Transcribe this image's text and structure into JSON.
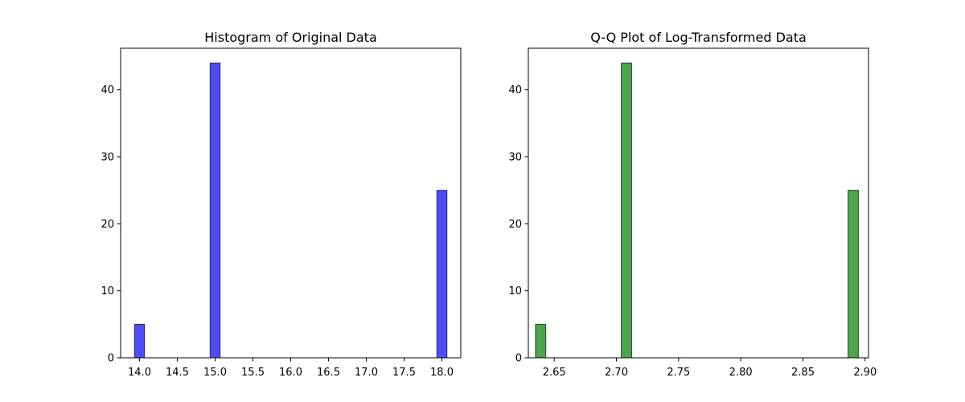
{
  "chart_data": [
    {
      "type": "bar",
      "title": "Histogram of Original Data",
      "xlabel": "",
      "ylabel": "",
      "xlim": [
        13.75,
        18.25
      ],
      "ylim": [
        0,
        46.2
      ],
      "x_ticks": [
        "14.0",
        "14.5",
        "15.0",
        "15.5",
        "16.0",
        "16.5",
        "17.0",
        "17.5",
        "18.0"
      ],
      "y_ticks": [
        "0",
        "10",
        "20",
        "30",
        "40"
      ],
      "bin_width": 0.133,
      "bars": [
        {
          "x": 14.0,
          "count": 5
        },
        {
          "x": 15.0,
          "count": 44
        },
        {
          "x": 18.0,
          "count": 25
        }
      ],
      "bar_color": "#0000ff",
      "grid": false
    },
    {
      "type": "bar",
      "title": "Q-Q Plot of Log-Transformed Data",
      "xlabel": "",
      "ylabel": "",
      "xlim": [
        2.6292,
        2.9027
      ],
      "ylim": [
        0,
        46.2
      ],
      "x_ticks": [
        "2.65",
        "2.70",
        "2.75",
        "2.80",
        "2.85",
        "2.90"
      ],
      "y_ticks": [
        "0",
        "10",
        "20",
        "30",
        "40"
      ],
      "bin_width": 0.00828,
      "bars": [
        {
          "x": 2.6391,
          "count": 5
        },
        {
          "x": 2.7081,
          "count": 44
        },
        {
          "x": 2.8904,
          "count": 25
        }
      ],
      "bar_color": "#008000",
      "grid": false
    }
  ]
}
